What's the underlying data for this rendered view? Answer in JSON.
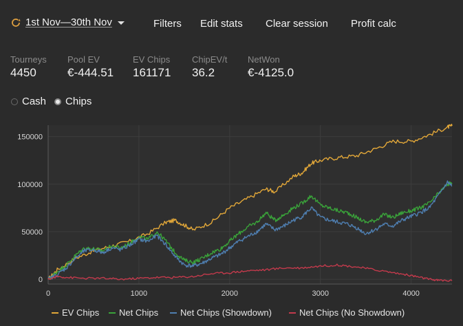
{
  "header": {
    "date_range": "1st Nov—30th Nov",
    "buttons": [
      "Filters",
      "Edit stats",
      "Clear session",
      "Profit calc"
    ]
  },
  "stats": [
    {
      "label": "Tourneys",
      "value": "4450"
    },
    {
      "label": "Pool EV",
      "value": "€-444.51"
    },
    {
      "label": "EV Chips",
      "value": "161171"
    },
    {
      "label": "ChipEV/t",
      "value": "36.2"
    },
    {
      "label": "NetWon",
      "value": "€-4125.0"
    }
  ],
  "mode": {
    "options": [
      "Cash",
      "Chips"
    ],
    "selected": "Chips"
  },
  "colors": {
    "ev": "#e3a839",
    "net": "#3aa33a",
    "showdown": "#4f7fb1",
    "no_showdown": "#c43a4c",
    "accent": "#e0a040"
  },
  "chart_data": {
    "type": "line",
    "x_ticks": [
      0,
      1000,
      2000,
      3000,
      4000
    ],
    "y_ticks": [
      0,
      50000,
      100000,
      150000
    ],
    "xlim": [
      0,
      4450
    ],
    "ylim": [
      -5000,
      162000
    ],
    "grid": true,
    "legend_position": "bottom",
    "series": [
      {
        "name": "EV Chips",
        "color": "#e3a839",
        "points": [
          [
            0,
            0
          ],
          [
            100,
            10000
          ],
          [
            300,
            22000
          ],
          [
            500,
            30000
          ],
          [
            700,
            35000
          ],
          [
            900,
            40000
          ],
          [
            1100,
            48000
          ],
          [
            1300,
            60000
          ],
          [
            1400,
            62000
          ],
          [
            1500,
            57000
          ],
          [
            1600,
            52000
          ],
          [
            1800,
            60000
          ],
          [
            2000,
            75000
          ],
          [
            2200,
            85000
          ],
          [
            2400,
            95000
          ],
          [
            2500,
            92000
          ],
          [
            2700,
            108000
          ],
          [
            2800,
            112000
          ],
          [
            2900,
            122000
          ],
          [
            3000,
            125000
          ],
          [
            3200,
            128000
          ],
          [
            3400,
            130000
          ],
          [
            3600,
            137000
          ],
          [
            3800,
            145000
          ],
          [
            4000,
            145000
          ],
          [
            4200,
            152000
          ],
          [
            4400,
            160000
          ],
          [
            4450,
            161171
          ]
        ]
      },
      {
        "name": "Net Chips",
        "color": "#3aa33a",
        "points": [
          [
            0,
            0
          ],
          [
            100,
            8000
          ],
          [
            200,
            15000
          ],
          [
            300,
            25000
          ],
          [
            400,
            33000
          ],
          [
            500,
            32000
          ],
          [
            600,
            30000
          ],
          [
            700,
            35000
          ],
          [
            800,
            33000
          ],
          [
            900,
            38000
          ],
          [
            1000,
            45000
          ],
          [
            1100,
            42000
          ],
          [
            1200,
            50000
          ],
          [
            1300,
            40000
          ],
          [
            1400,
            28000
          ],
          [
            1500,
            20000
          ],
          [
            1600,
            18000
          ],
          [
            1700,
            22000
          ],
          [
            1800,
            28000
          ],
          [
            1900,
            32000
          ],
          [
            2000,
            40000
          ],
          [
            2100,
            48000
          ],
          [
            2200,
            55000
          ],
          [
            2300,
            60000
          ],
          [
            2400,
            70000
          ],
          [
            2500,
            62000
          ],
          [
            2600,
            68000
          ],
          [
            2700,
            75000
          ],
          [
            2800,
            80000
          ],
          [
            2900,
            88000
          ],
          [
            3000,
            78000
          ],
          [
            3100,
            75000
          ],
          [
            3200,
            72000
          ],
          [
            3300,
            70000
          ],
          [
            3400,
            65000
          ],
          [
            3500,
            60000
          ],
          [
            3600,
            62000
          ],
          [
            3700,
            68000
          ],
          [
            3800,
            65000
          ],
          [
            3900,
            70000
          ],
          [
            4000,
            72000
          ],
          [
            4100,
            75000
          ],
          [
            4200,
            80000
          ],
          [
            4300,
            90000
          ],
          [
            4400,
            100000
          ],
          [
            4450,
            101000
          ]
        ]
      },
      {
        "name": "Net Chips (Showdown)",
        "color": "#4f7fb1",
        "points": [
          [
            0,
            0
          ],
          [
            100,
            5000
          ],
          [
            200,
            12000
          ],
          [
            300,
            22000
          ],
          [
            400,
            30000
          ],
          [
            500,
            31000
          ],
          [
            600,
            28000
          ],
          [
            700,
            33000
          ],
          [
            800,
            31000
          ],
          [
            900,
            36000
          ],
          [
            1000,
            42000
          ],
          [
            1100,
            40000
          ],
          [
            1200,
            46000
          ],
          [
            1300,
            36000
          ],
          [
            1400,
            24000
          ],
          [
            1500,
            15000
          ],
          [
            1600,
            14000
          ],
          [
            1700,
            17000
          ],
          [
            1800,
            22000
          ],
          [
            1900,
            26000
          ],
          [
            2000,
            33000
          ],
          [
            2100,
            40000
          ],
          [
            2200,
            45000
          ],
          [
            2300,
            50000
          ],
          [
            2400,
            58000
          ],
          [
            2500,
            52000
          ],
          [
            2600,
            56000
          ],
          [
            2700,
            62000
          ],
          [
            2800,
            66000
          ],
          [
            2900,
            75000
          ],
          [
            3000,
            65000
          ],
          [
            3100,
            62000
          ],
          [
            3200,
            60000
          ],
          [
            3300,
            58000
          ],
          [
            3400,
            54000
          ],
          [
            3500,
            48000
          ],
          [
            3600,
            52000
          ],
          [
            3700,
            58000
          ],
          [
            3800,
            56000
          ],
          [
            3900,
            62000
          ],
          [
            4000,
            66000
          ],
          [
            4100,
            70000
          ],
          [
            4200,
            75000
          ],
          [
            4300,
            88000
          ],
          [
            4400,
            102000
          ],
          [
            4450,
            98000
          ]
        ]
      },
      {
        "name": "Net Chips (No Showdown)",
        "color": "#c43a4c",
        "points": [
          [
            0,
            0
          ],
          [
            100,
            3000
          ],
          [
            200,
            2000
          ],
          [
            400,
            1000
          ],
          [
            600,
            1000
          ],
          [
            800,
            0
          ],
          [
            1000,
            1000
          ],
          [
            1200,
            2000
          ],
          [
            1400,
            2000
          ],
          [
            1600,
            3000
          ],
          [
            1800,
            6000
          ],
          [
            2000,
            7000
          ],
          [
            2200,
            9000
          ],
          [
            2400,
            10000
          ],
          [
            2600,
            12000
          ],
          [
            2800,
            12000
          ],
          [
            3000,
            14000
          ],
          [
            3200,
            15000
          ],
          [
            3400,
            13000
          ],
          [
            3600,
            10000
          ],
          [
            3800,
            7000
          ],
          [
            4000,
            4000
          ],
          [
            4100,
            2000
          ],
          [
            4200,
            0
          ],
          [
            4300,
            -1000
          ],
          [
            4450,
            -1500
          ]
        ]
      }
    ]
  }
}
